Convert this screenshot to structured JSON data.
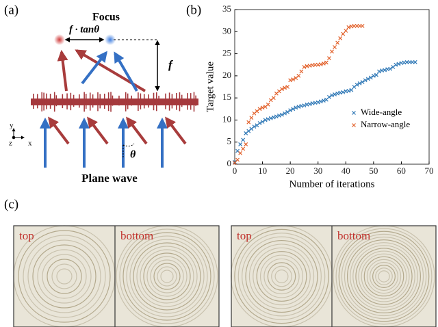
{
  "panel_labels": [
    "(a)",
    "(b)",
    "(c)"
  ],
  "diagram": {
    "focus": "Focus",
    "shift": "f · tanθ",
    "focal": "f",
    "axis_y": "y",
    "axis_z": "z",
    "axis_x": "x",
    "angle": "θ",
    "source": "Plane wave"
  },
  "chart_data": {
    "type": "scatter",
    "xlabel": "Number of iterations",
    "ylabel": "Target value",
    "xlim": [
      0,
      70
    ],
    "xticks": [
      0,
      10,
      20,
      30,
      40,
      50,
      60,
      70
    ],
    "ylim": [
      0,
      35
    ],
    "yticks": [
      0,
      5,
      10,
      15,
      20,
      25,
      30,
      35
    ],
    "legend": "lower right",
    "series": [
      {
        "name": "Wide-angle",
        "color": "#2f78b6",
        "x": [
          0,
          1,
          2,
          3,
          4,
          5,
          6,
          7,
          8,
          9,
          10,
          11,
          12,
          13,
          14,
          15,
          16,
          17,
          18,
          19,
          20,
          21,
          22,
          23,
          24,
          25,
          26,
          27,
          28,
          29,
          30,
          31,
          32,
          33,
          34,
          35,
          36,
          37,
          38,
          39,
          40,
          41,
          42,
          43,
          44,
          45,
          46,
          47,
          48,
          49,
          50,
          51,
          52,
          53,
          54,
          55,
          56,
          57,
          58,
          59,
          60,
          61,
          62,
          63,
          64,
          65
        ],
        "values": [
          0.5,
          3,
          4.5,
          5.5,
          7,
          7.5,
          8,
          8.5,
          8.8,
          9.3,
          9.6,
          10,
          10.2,
          10.4,
          10.6,
          10.8,
          11,
          11.2,
          11.5,
          11.8,
          12.2,
          12.5,
          12.8,
          13,
          13.2,
          13.3,
          13.5,
          13.6,
          13.8,
          13.9,
          14,
          14.2,
          14.4,
          14.6,
          15.2,
          15.6,
          15.8,
          16,
          16.2,
          16.3,
          16.5,
          16.6,
          16.8,
          17.5,
          18,
          18.3,
          18.6,
          19,
          19.3,
          19.6,
          20,
          20.2,
          21,
          21.2,
          21.3,
          21.5,
          21.6,
          22,
          22.5,
          22.7,
          22.9,
          23,
          23.1,
          23.1,
          23.1,
          23.1
        ]
      },
      {
        "name": "Narrow-angle",
        "color": "#e2612b",
        "x": [
          0,
          1,
          2,
          3,
          4,
          5,
          6,
          7,
          8,
          9,
          10,
          11,
          12,
          13,
          14,
          15,
          16,
          17,
          18,
          19,
          20,
          21,
          22,
          23,
          24,
          25,
          26,
          27,
          28,
          29,
          30,
          31,
          32,
          33,
          34,
          35,
          36,
          37,
          38,
          39,
          40,
          41,
          42,
          43,
          44,
          45,
          46
        ],
        "values": [
          0.3,
          1,
          2.5,
          3.5,
          4.5,
          9.5,
          10.5,
          11.5,
          12,
          12.5,
          12.8,
          13,
          13.5,
          14.5,
          15,
          16,
          16.5,
          17,
          17.3,
          17.5,
          19,
          19.2,
          19.5,
          20,
          21,
          22,
          22.2,
          22.3,
          22.4,
          22.5,
          22.5,
          22.6,
          22.8,
          23,
          24,
          25.5,
          26.5,
          27.5,
          28.5,
          29.5,
          30.2,
          31,
          31.2,
          31.3,
          31.3,
          31.3,
          31.3
        ]
      }
    ]
  },
  "photos": [
    {
      "labels": [
        "top",
        "bottom"
      ]
    },
    {
      "labels": [
        "top",
        "bottom"
      ]
    }
  ]
}
